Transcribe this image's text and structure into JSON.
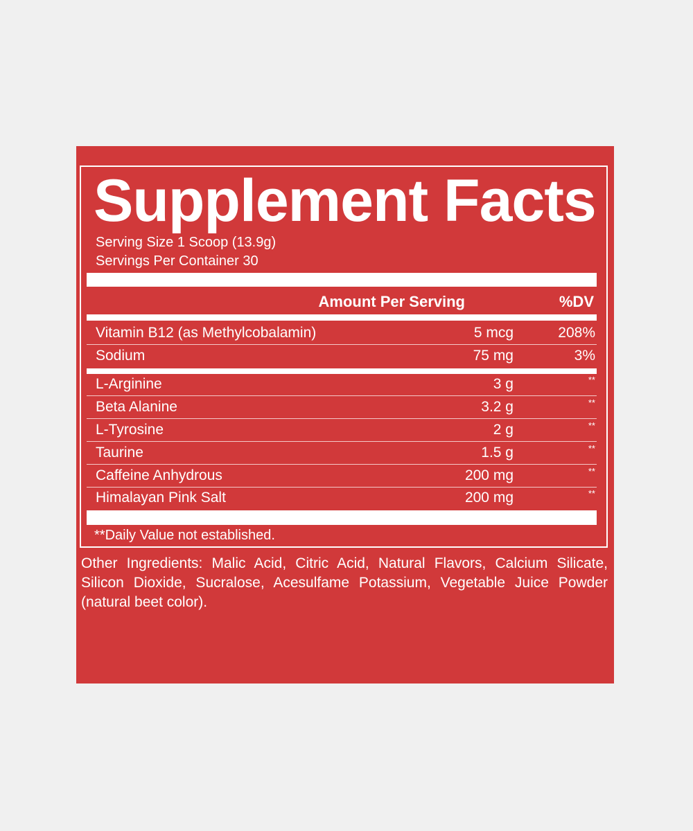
{
  "label": {
    "title": "Supplement Facts",
    "serving_size": "Serving Size 1 Scoop (13.9g)",
    "servings_per_container": "Servings Per Container 30",
    "header_amount": "Amount Per Serving",
    "header_dv": "%DV",
    "vitamins": [
      {
        "name": "Vitamin B12 (as Methylcobalamin)",
        "amount": "5 mcg",
        "dv": "208%"
      },
      {
        "name": "Sodium",
        "amount": "75 mg",
        "dv": "3%"
      }
    ],
    "ingredients": [
      {
        "name": "L-Arginine",
        "amount": "3 g",
        "dv": "**"
      },
      {
        "name": "Beta Alanine",
        "amount": "3.2 g",
        "dv": "**"
      },
      {
        "name": "L-Tyrosine",
        "amount": "2 g",
        "dv": "**"
      },
      {
        "name": "Taurine",
        "amount": "1.5 g",
        "dv": "**"
      },
      {
        "name": "Caffeine Anhydrous",
        "amount": "200 mg",
        "dv": "**"
      },
      {
        "name": "Himalayan Pink Salt",
        "amount": "200 mg",
        "dv": "**"
      }
    ],
    "footnote": "**Daily Value not established.",
    "other_ingredients": "Other Ingredients: Malic Acid, Citric Acid, Natural Flavors, Calcium Silicate, Silicon Dioxide, Sucralose, Acesulfame Potassium, Vegetable Juice Powder (natural beet color).",
    "colors": {
      "panel": "#d1393a",
      "text": "#ffffff",
      "page": "#f0f0f0"
    }
  }
}
